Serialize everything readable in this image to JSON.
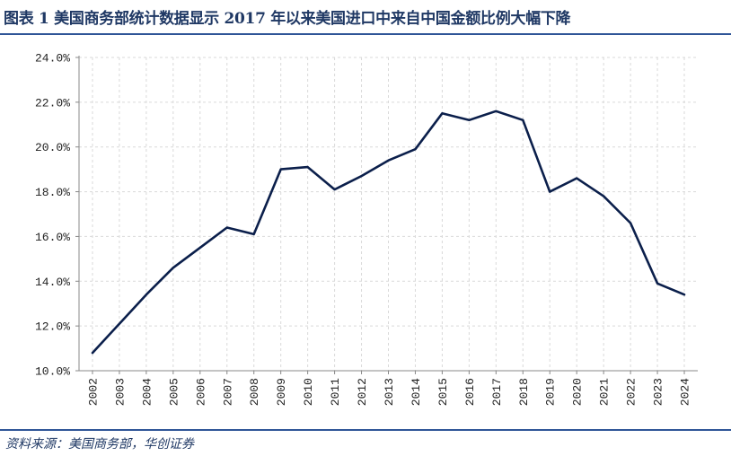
{
  "title": "图表 1  美国商务部统计数据显示 2017 年以来美国进口中来自中国金额比例大幅下降",
  "source": "资料来源：美国商务部，华创证券",
  "colors": {
    "line": "#0b1f4b",
    "rule": "#2f5597",
    "title": "#1f3864",
    "grid": "#d9d9d9"
  },
  "chart_data": {
    "type": "line",
    "title": "",
    "xlabel": "",
    "ylabel": "",
    "ylim": [
      10.0,
      24.0
    ],
    "yticks": [
      "10.0%",
      "12.0%",
      "14.0%",
      "16.0%",
      "18.0%",
      "20.0%",
      "22.0%",
      "24.0%"
    ],
    "grid": true,
    "categories": [
      "2002",
      "2003",
      "2004",
      "2005",
      "2006",
      "2007",
      "2008",
      "2009",
      "2010",
      "2011",
      "2012",
      "2013",
      "2014",
      "2015",
      "2016",
      "2017",
      "2018",
      "2019",
      "2020",
      "2021",
      "2022",
      "2023",
      "2024"
    ],
    "series": [
      {
        "values": [
          10.8,
          12.1,
          13.4,
          14.6,
          15.5,
          16.4,
          16.1,
          19.0,
          19.1,
          18.1,
          18.7,
          19.4,
          19.9,
          21.5,
          21.2,
          21.6,
          21.2,
          18.0,
          18.6,
          17.8,
          16.6,
          13.9,
          13.4
        ]
      }
    ]
  }
}
